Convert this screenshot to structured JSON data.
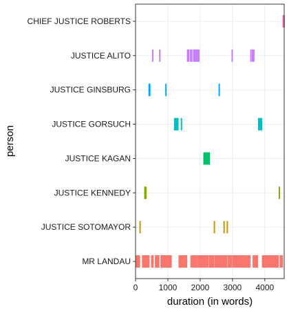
{
  "chart_data": {
    "type": "scatter",
    "mark": "vertical-tick",
    "title": "",
    "xlabel": "duration (in words)",
    "ylabel": "person",
    "xlim": [
      0,
      4600
    ],
    "x_ticks": [
      0,
      1000,
      2000,
      3000,
      4000
    ],
    "grid": true,
    "legend": "none",
    "categories": [
      "CHIEF JUSTICE ROBERTS",
      "JUSTICE ALITO",
      "JUSTICE GINSBURG",
      "JUSTICE GORSUCH",
      "JUSTICE KAGAN",
      "JUSTICE KENNEDY",
      "JUSTICE SOTOMAYOR",
      "MR LANDAU"
    ],
    "series": [
      {
        "category": "CHIEF JUSTICE ROBERTS",
        "color": "#FF61C3",
        "x": [
          4570,
          4585,
          4598
        ]
      },
      {
        "category": "JUSTICE ALITO",
        "color": "#C77CFF",
        "x": [
          530,
          750,
          1610,
          1640,
          1700,
          1740,
          1800,
          1840,
          1880,
          1920,
          1960,
          2990,
          3570,
          3620,
          3660
        ]
      },
      {
        "category": "JUSTICE GINSBURG",
        "color": "#00A9FF",
        "x": [
          420,
          440,
          940,
          2590
        ]
      },
      {
        "category": "JUSTICE GORSUCH",
        "color": "#00BFC4",
        "x": [
          1210,
          1230,
          1250,
          1270,
          1290,
          1310,
          1420,
          3810,
          3840,
          3870,
          3900
        ]
      },
      {
        "category": "JUSTICE KAGAN",
        "color": "#00BE67",
        "x": [
          2120,
          2160,
          2200,
          2240,
          2280
        ]
      },
      {
        "category": "JUSTICE KENNEDY",
        "color": "#7CAE00",
        "x": [
          290,
          320,
          4450
        ]
      },
      {
        "category": "JUSTICE SOTOMAYOR",
        "color": "#CD9600",
        "x": [
          140,
          2440,
          2740,
          2840
        ]
      },
      {
        "category": "MR LANDAU",
        "color": "#F8766D",
        "x": [
          20,
          40,
          60,
          80,
          100,
          120,
          220,
          240,
          260,
          280,
          310,
          330,
          350,
          370,
          390,
          410,
          500,
          520,
          540,
          620,
          640,
          660,
          680,
          700,
          720,
          790,
          810,
          830,
          850,
          870,
          890,
          910,
          930,
          960,
          980,
          1000,
          1020,
          1040,
          1060,
          1080,
          1100,
          1350,
          1370,
          1390,
          1410,
          1440,
          1460,
          1480,
          1500,
          1520,
          1540,
          1560,
          1580,
          1720,
          1760,
          1780,
          1820,
          1860,
          1900,
          1940,
          1980,
          2010,
          2030,
          2060,
          2080,
          2110,
          2130,
          2170,
          2210,
          2250,
          2300,
          2320,
          2350,
          2380,
          2410,
          2460,
          2480,
          2510,
          2530,
          2560,
          2580,
          2610,
          2630,
          2660,
          2690,
          2720,
          2760,
          2790,
          2820,
          2870,
          2900,
          2930,
          2960,
          3010,
          3040,
          3070,
          3100,
          3130,
          3160,
          3190,
          3220,
          3250,
          3280,
          3310,
          3340,
          3370,
          3400,
          3430,
          3460,
          3490,
          3520,
          3540,
          3640,
          3680,
          3710,
          3740,
          3770,
          3930,
          3960,
          3990,
          4020,
          4050,
          4080,
          4110,
          4140,
          4170,
          4200,
          4230,
          4260,
          4290,
          4320,
          4350,
          4380,
          4410,
          4480,
          4510,
          4540
        ]
      }
    ]
  }
}
